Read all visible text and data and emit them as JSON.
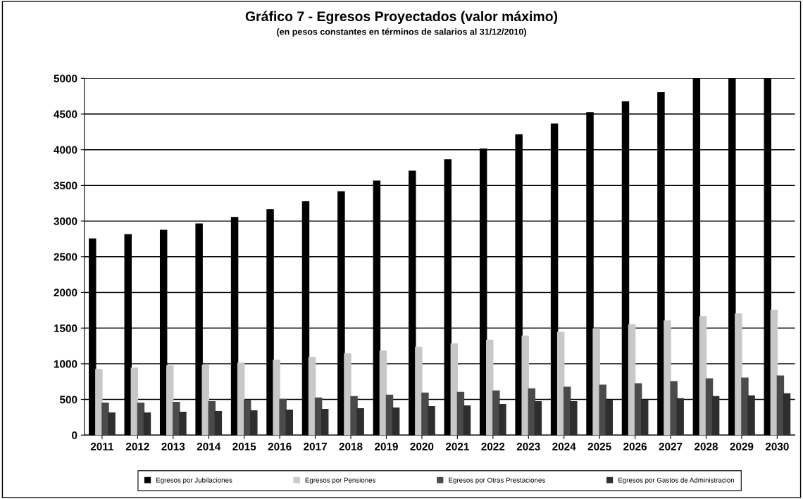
{
  "chart_data": {
    "type": "bar",
    "title": "Gráfico 7 - Egresos Proyectados (valor máximo)",
    "subtitle": "(en pesos constantes en términos de salarios al 31/12/2010)",
    "categories": [
      "2011",
      "2012",
      "2013",
      "2014",
      "2015",
      "2016",
      "2017",
      "2018",
      "2019",
      "2020",
      "2021",
      "2022",
      "2023",
      "2024",
      "2025",
      "2026",
      "2027",
      "2028",
      "2029",
      "2030"
    ],
    "series": [
      {
        "name": "Egresos por Jubilaciones",
        "color": "#000000",
        "values": [
          2750,
          2810,
          2870,
          2960,
          3050,
          3160,
          3270,
          3410,
          3560,
          3700,
          3860,
          4010,
          4210,
          4360,
          4520,
          4670,
          4800,
          5000,
          5000,
          5000
        ]
      },
      {
        "name": "Egresos por Pensiones",
        "color": "#c8c8c8",
        "values": [
          920,
          940,
          970,
          980,
          1010,
          1050,
          1090,
          1140,
          1180,
          1230,
          1280,
          1330,
          1390,
          1440,
          1490,
          1550,
          1600,
          1660,
          1700,
          1750
        ]
      },
      {
        "name": "Egresos por Otras Prestaciones",
        "color": "#4a4a4a",
        "values": [
          450,
          450,
          460,
          470,
          490,
          500,
          520,
          540,
          560,
          590,
          600,
          620,
          650,
          670,
          700,
          720,
          750,
          790,
          800,
          830
        ]
      },
      {
        "name": "Egresos por Gastos de Administracion",
        "color": "#2e2e2e",
        "values": [
          310,
          310,
          320,
          330,
          340,
          350,
          360,
          370,
          380,
          400,
          410,
          430,
          470,
          470,
          490,
          490,
          510,
          540,
          550,
          580
        ]
      }
    ],
    "ylim": [
      0,
      5000
    ],
    "yticks": [
      0,
      500,
      1000,
      1500,
      2000,
      2500,
      3000,
      3500,
      4000,
      4500,
      5000
    ],
    "grid": "y",
    "legend": "bottom"
  }
}
